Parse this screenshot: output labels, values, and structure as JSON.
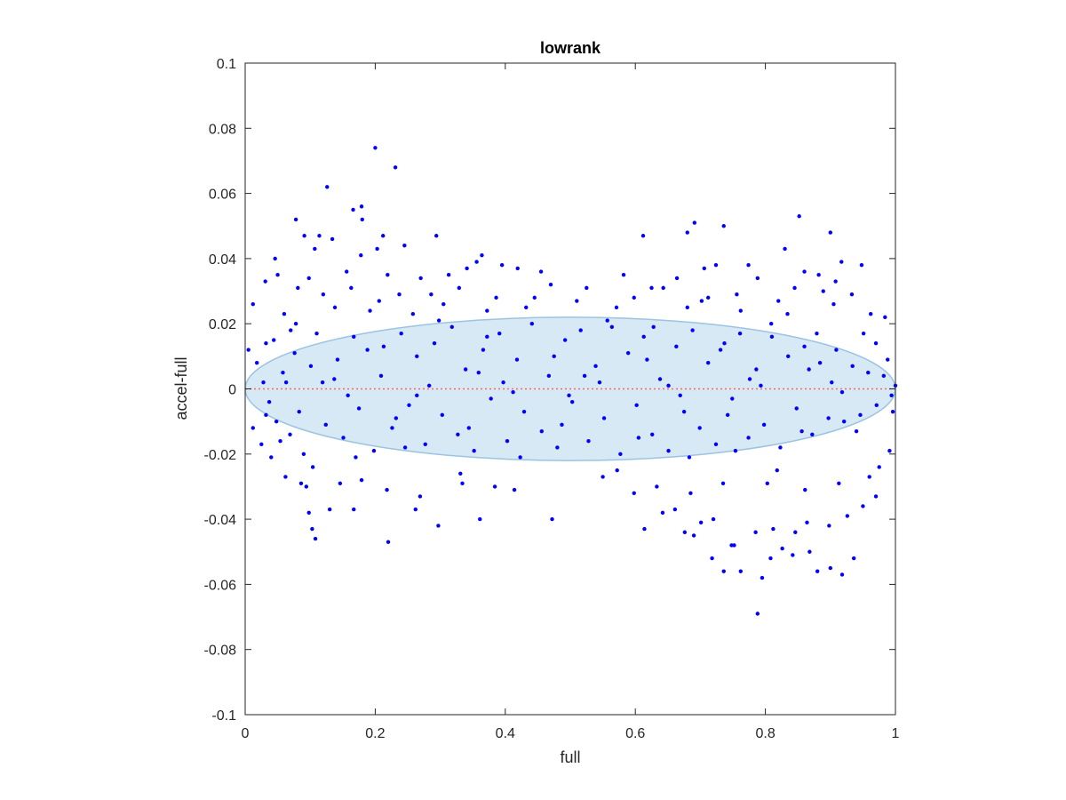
{
  "chart_data": {
    "type": "scatter",
    "title": "lowrank",
    "xlabel": "full",
    "ylabel": "accel-full",
    "xlim": [
      0,
      1
    ],
    "ylim": [
      -0.1,
      0.1
    ],
    "xticks": [
      0,
      0.2,
      0.4,
      0.6,
      0.8,
      1
    ],
    "xtick_labels": [
      "0",
      "0.2",
      "0.4",
      "0.6",
      "0.8",
      "1"
    ],
    "yticks": [
      -0.1,
      -0.08,
      -0.06,
      -0.04,
      -0.02,
      0,
      0.02,
      0.04,
      0.06,
      0.08,
      0.1
    ],
    "ytick_labels": [
      "-0.1",
      "-0.08",
      "-0.06",
      "-0.04",
      "-0.02",
      "0",
      "0.02",
      "0.04",
      "0.06",
      "0.08",
      "0.1"
    ],
    "grid": false,
    "zero_line": {
      "y": 0,
      "style": "dotted",
      "color": "#ff6666"
    },
    "ellipse": {
      "cx": 0.5,
      "cy": 0,
      "rx": 0.5,
      "ry": 0.022,
      "fill": "#d6e9f5",
      "stroke": "#9cc4e0"
    },
    "point_color": "#0000ff",
    "series": [
      {
        "points": [
          [
            0.2,
            0.074
          ],
          [
            0.231,
            0.068
          ],
          [
            0.126,
            0.062
          ],
          [
            0.179,
            0.056
          ],
          [
            0.166,
            0.055
          ],
          [
            0.18,
            0.052
          ],
          [
            0.078,
            0.052
          ],
          [
            0.691,
            0.051
          ],
          [
            0.852,
            0.053
          ],
          [
            0.091,
            0.047
          ],
          [
            0.114,
            0.047
          ],
          [
            0.134,
            0.046
          ],
          [
            0.294,
            0.047
          ],
          [
            0.612,
            0.047
          ],
          [
            0.736,
            0.05
          ],
          [
            0.68,
            0.048
          ],
          [
            0.9,
            0.048
          ],
          [
            0.046,
            0.04
          ],
          [
            0.107,
            0.043
          ],
          [
            0.212,
            0.047
          ],
          [
            0.245,
            0.044
          ],
          [
            0.178,
            0.041
          ],
          [
            0.203,
            0.043
          ],
          [
            0.364,
            0.041
          ],
          [
            0.356,
            0.039
          ],
          [
            0.419,
            0.037
          ],
          [
            0.395,
            0.038
          ],
          [
            0.724,
            0.038
          ],
          [
            0.706,
            0.037
          ],
          [
            0.774,
            0.038
          ],
          [
            0.83,
            0.043
          ],
          [
            0.86,
            0.036
          ],
          [
            0.882,
            0.035
          ],
          [
            0.917,
            0.039
          ],
          [
            0.948,
            0.038
          ],
          [
            0.05,
            0.035
          ],
          [
            0.098,
            0.034
          ],
          [
            0.156,
            0.036
          ],
          [
            0.219,
            0.035
          ],
          [
            0.27,
            0.034
          ],
          [
            0.313,
            0.035
          ],
          [
            0.341,
            0.037
          ],
          [
            0.455,
            0.036
          ],
          [
            0.582,
            0.035
          ],
          [
            0.664,
            0.034
          ],
          [
            0.788,
            0.034
          ],
          [
            0.845,
            0.031
          ],
          [
            0.908,
            0.033
          ],
          [
            0.031,
            0.033
          ],
          [
            0.081,
            0.031
          ],
          [
            0.12,
            0.029
          ],
          [
            0.163,
            0.031
          ],
          [
            0.237,
            0.029
          ],
          [
            0.286,
            0.029
          ],
          [
            0.329,
            0.031
          ],
          [
            0.386,
            0.028
          ],
          [
            0.47,
            0.032
          ],
          [
            0.525,
            0.031
          ],
          [
            0.598,
            0.028
          ],
          [
            0.625,
            0.031
          ],
          [
            0.643,
            0.031
          ],
          [
            0.712,
            0.028
          ],
          [
            0.756,
            0.029
          ],
          [
            0.82,
            0.027
          ],
          [
            0.889,
            0.03
          ],
          [
            0.933,
            0.029
          ],
          [
            0.012,
            0.026
          ],
          [
            0.06,
            0.023
          ],
          [
            0.138,
            0.025
          ],
          [
            0.192,
            0.024
          ],
          [
            0.258,
            0.023
          ],
          [
            0.305,
            0.026
          ],
          [
            0.372,
            0.024
          ],
          [
            0.432,
            0.025
          ],
          [
            0.51,
            0.027
          ],
          [
            0.571,
            0.025
          ],
          [
            0.68,
            0.025
          ],
          [
            0.762,
            0.024
          ],
          [
            0.834,
            0.023
          ],
          [
            0.905,
            0.026
          ],
          [
            0.962,
            0.023
          ],
          [
            0.984,
            0.022
          ],
          [
            0.72,
            -0.04
          ],
          [
            0.752,
            -0.048
          ],
          [
            0.676,
            -0.044
          ],
          [
            0.69,
            -0.045
          ],
          [
            0.701,
            -0.041
          ],
          [
            0.718,
            -0.052
          ],
          [
            0.736,
            -0.056
          ],
          [
            0.748,
            -0.048
          ],
          [
            0.762,
            -0.056
          ],
          [
            0.788,
            -0.069
          ],
          [
            0.795,
            -0.058
          ],
          [
            0.808,
            -0.052
          ],
          [
            0.826,
            -0.049
          ],
          [
            0.842,
            -0.051
          ],
          [
            0.868,
            -0.05
          ],
          [
            0.88,
            -0.056
          ],
          [
            0.9,
            -0.055
          ],
          [
            0.918,
            -0.057
          ],
          [
            0.936,
            -0.052
          ],
          [
            0.614,
            -0.043
          ],
          [
            0.642,
            -0.038
          ],
          [
            0.661,
            -0.037
          ],
          [
            0.785,
            -0.044
          ],
          [
            0.812,
            -0.043
          ],
          [
            0.846,
            -0.044
          ],
          [
            0.864,
            -0.041
          ],
          [
            0.898,
            -0.042
          ],
          [
            0.926,
            -0.039
          ],
          [
            0.95,
            -0.036
          ],
          [
            0.97,
            -0.033
          ],
          [
            0.098,
            -0.038
          ],
          [
            0.103,
            -0.043
          ],
          [
            0.108,
            -0.046
          ],
          [
            0.094,
            -0.03
          ],
          [
            0.086,
            -0.029
          ],
          [
            0.13,
            -0.037
          ],
          [
            0.167,
            -0.037
          ],
          [
            0.22,
            -0.047
          ],
          [
            0.297,
            -0.042
          ],
          [
            0.262,
            -0.037
          ],
          [
            0.361,
            -0.04
          ],
          [
            0.472,
            -0.04
          ],
          [
            0.414,
            -0.031
          ],
          [
            0.384,
            -0.03
          ],
          [
            0.334,
            -0.029
          ],
          [
            0.269,
            -0.033
          ],
          [
            0.218,
            -0.031
          ],
          [
            0.179,
            -0.028
          ],
          [
            0.146,
            -0.029
          ],
          [
            0.062,
            -0.027
          ],
          [
            0.04,
            -0.021
          ],
          [
            0.55,
            -0.027
          ],
          [
            0.598,
            -0.032
          ],
          [
            0.633,
            -0.03
          ],
          [
            0.685,
            -0.032
          ],
          [
            0.735,
            -0.029
          ],
          [
            0.803,
            -0.029
          ],
          [
            0.861,
            -0.031
          ],
          [
            0.913,
            -0.029
          ],
          [
            0.96,
            -0.027
          ],
          [
            0.975,
            -0.024
          ],
          [
            0.991,
            -0.019
          ],
          [
            0.005,
            0.012
          ],
          [
            0.018,
            0.008
          ],
          [
            0.028,
            0.002
          ],
          [
            0.037,
            -0.004
          ],
          [
            0.048,
            -0.01
          ],
          [
            0.058,
            0.005
          ],
          [
            0.069,
            -0.014
          ],
          [
            0.076,
            0.011
          ],
          [
            0.012,
            -0.012
          ],
          [
            0.025,
            -0.017
          ],
          [
            0.044,
            0.015
          ],
          [
            0.07,
            0.018
          ],
          [
            0.09,
            -0.02
          ],
          [
            0.11,
            0.017
          ],
          [
            0.124,
            -0.011
          ],
          [
            0.142,
            0.009
          ],
          [
            0.151,
            -0.015
          ],
          [
            0.167,
            0.016
          ],
          [
            0.175,
            -0.006
          ],
          [
            0.188,
            0.012
          ],
          [
            0.198,
            -0.019
          ],
          [
            0.209,
            0.004
          ],
          [
            0.226,
            -0.012
          ],
          [
            0.24,
            0.017
          ],
          [
            0.252,
            -0.005
          ],
          [
            0.264,
            0.01
          ],
          [
            0.277,
            -0.017
          ],
          [
            0.291,
            0.014
          ],
          [
            0.303,
            -0.008
          ],
          [
            0.318,
            0.019
          ],
          [
            0.327,
            -0.014
          ],
          [
            0.339,
            0.006
          ],
          [
            0.352,
            -0.019
          ],
          [
            0.366,
            0.012
          ],
          [
            0.378,
            -0.003
          ],
          [
            0.391,
            0.017
          ],
          [
            0.403,
            -0.016
          ],
          [
            0.418,
            0.009
          ],
          [
            0.429,
            -0.007
          ],
          [
            0.441,
            0.02
          ],
          [
            0.456,
            -0.013
          ],
          [
            0.467,
            0.004
          ],
          [
            0.48,
            -0.018
          ],
          [
            0.492,
            0.015
          ],
          [
            0.503,
            -0.004
          ],
          [
            0.516,
            0.018
          ],
          [
            0.528,
            -0.016
          ],
          [
            0.539,
            0.007
          ],
          [
            0.552,
            -0.009
          ],
          [
            0.564,
            0.019
          ],
          [
            0.577,
            -0.02
          ],
          [
            0.589,
            0.011
          ],
          [
            0.602,
            -0.005
          ],
          [
            0.613,
            0.016
          ],
          [
            0.626,
            -0.014
          ],
          [
            0.638,
            0.003
          ],
          [
            0.651,
            -0.019
          ],
          [
            0.663,
            0.013
          ],
          [
            0.675,
            -0.007
          ],
          [
            0.688,
            0.018
          ],
          [
            0.699,
            -0.012
          ],
          [
            0.712,
            0.008
          ],
          [
            0.724,
            -0.017
          ],
          [
            0.737,
            0.014
          ],
          [
            0.749,
            -0.003
          ],
          [
            0.761,
            0.017
          ],
          [
            0.774,
            -0.015
          ],
          [
            0.786,
            0.006
          ],
          [
            0.798,
            -0.011
          ],
          [
            0.81,
            0.016
          ],
          [
            0.823,
            -0.018
          ],
          [
            0.835,
            0.01
          ],
          [
            0.848,
            -0.006
          ],
          [
            0.86,
            0.013
          ],
          [
            0.872,
            -0.014
          ],
          [
            0.884,
            0.008
          ],
          [
            0.897,
            -0.009
          ],
          [
            0.909,
            0.012
          ],
          [
            0.921,
            -0.01
          ],
          [
            0.934,
            0.007
          ],
          [
            0.946,
            -0.008
          ],
          [
            0.958,
            0.005
          ],
          [
            0.971,
            -0.005
          ],
          [
            0.982,
            0.004
          ],
          [
            0.994,
            -0.002
          ],
          [
            1.0,
            0.001
          ],
          [
            0.063,
            0.002
          ],
          [
            0.158,
            -0.002
          ],
          [
            0.283,
            0.001
          ],
          [
            0.412,
            -0.001
          ],
          [
            0.545,
            0.002
          ],
          [
            0.669,
            -0.002
          ],
          [
            0.793,
            0.001
          ],
          [
            0.918,
            -0.001
          ],
          [
            0.101,
            0.007
          ],
          [
            0.232,
            -0.009
          ],
          [
            0.359,
            0.005
          ],
          [
            0.487,
            -0.011
          ],
          [
            0.618,
            0.009
          ],
          [
            0.742,
            -0.008
          ],
          [
            0.867,
            0.006
          ],
          [
            0.083,
            -0.007
          ],
          [
            0.213,
            0.013
          ],
          [
            0.344,
            -0.012
          ],
          [
            0.475,
            0.01
          ],
          [
            0.605,
            -0.015
          ],
          [
            0.731,
            0.012
          ],
          [
            0.856,
            -0.013
          ],
          [
            0.119,
            0.002
          ],
          [
            0.246,
            -0.018
          ],
          [
            0.372,
            0.016
          ],
          [
            0.498,
            -0.002
          ],
          [
            0.628,
            0.019
          ],
          [
            0.754,
            -0.019
          ],
          [
            0.879,
            0.017
          ],
          [
            0.032,
            0.014
          ],
          [
            0.032,
            -0.008
          ],
          [
            0.054,
            -0.016
          ],
          [
            0.137,
            0.003
          ],
          [
            0.264,
            -0.002
          ],
          [
            0.397,
            0.002
          ],
          [
            0.522,
            0.004
          ],
          [
            0.651,
            0.001
          ],
          [
            0.776,
            0.003
          ],
          [
            0.902,
            0.002
          ],
          [
            0.17,
            -0.021
          ],
          [
            0.298,
            0.021
          ],
          [
            0.423,
            -0.021
          ],
          [
            0.557,
            0.021
          ],
          [
            0.683,
            -0.021
          ],
          [
            0.809,
            0.02
          ],
          [
            0.94,
            -0.013
          ],
          [
            0.97,
            0.014
          ],
          [
            0.988,
            0.009
          ],
          [
            0.996,
            -0.007
          ],
          [
            0.078,
            0.02
          ],
          [
            0.104,
            -0.024
          ],
          [
            0.206,
            0.027
          ],
          [
            0.331,
            -0.026
          ],
          [
            0.445,
            0.028
          ],
          [
            0.572,
            -0.025
          ],
          [
            0.702,
            0.027
          ],
          [
            0.818,
            -0.025
          ],
          [
            0.951,
            0.017
          ]
        ]
      }
    ]
  }
}
